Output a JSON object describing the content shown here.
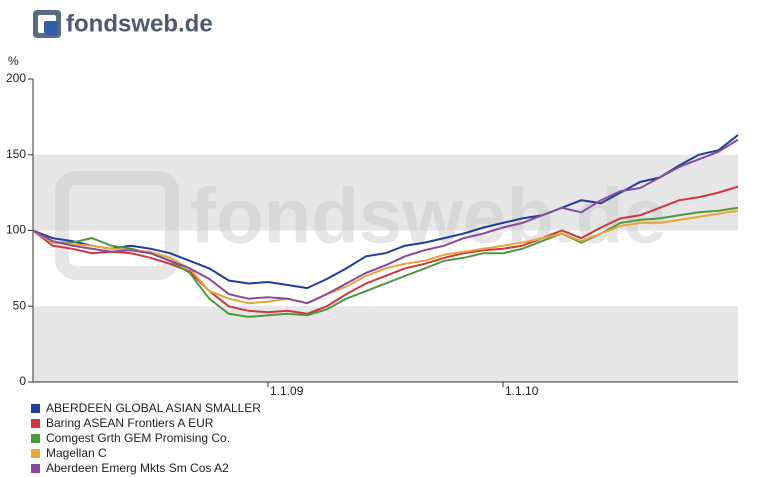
{
  "chart_data": {
    "type": "line",
    "logo": "fondsweb.de",
    "watermark": "fondsweb.de",
    "y_label": "%",
    "x": [
      2008,
      2008.083,
      2008.167,
      2008.25,
      2008.333,
      2008.417,
      2008.5,
      2008.583,
      2008.667,
      2008.75,
      2008.833,
      2008.917,
      2009,
      2009.083,
      2009.167,
      2009.25,
      2009.333,
      2009.417,
      2009.5,
      2009.583,
      2009.667,
      2009.75,
      2009.833,
      2009.917,
      2010,
      2010.083,
      2010.167,
      2010.25,
      2010.333,
      2010.417,
      2010.5,
      2010.583,
      2010.667,
      2010.75,
      2010.833,
      2010.917,
      2011
    ],
    "xlim": [
      2008,
      2011
    ],
    "xticks": [
      {
        "value": 2009,
        "label": "1.1.09"
      },
      {
        "value": 2010,
        "label": "1.1.10"
      }
    ],
    "ylim": [
      0,
      200
    ],
    "yticks": [
      0,
      50,
      100,
      150,
      200
    ],
    "grid": true,
    "legend": "bottom-left",
    "series": [
      {
        "name": "ABERDEEN GLOBAL ASIAN SMALLER",
        "color": "#1f3f9f",
        "values": [
          100,
          95,
          93,
          90,
          88,
          90,
          88,
          85,
          80,
          75,
          67,
          65,
          66,
          64,
          62,
          68,
          75,
          83,
          85,
          90,
          92,
          95,
          98,
          102,
          105,
          108,
          110,
          115,
          120,
          118,
          125,
          132,
          135,
          143,
          150,
          153,
          163
        ]
      },
      {
        "name": "Baring ASEAN Frontiers A EUR",
        "color": "#d0373a",
        "values": [
          100,
          90,
          88,
          85,
          86,
          85,
          82,
          78,
          73,
          60,
          50,
          47,
          46,
          47,
          45,
          50,
          58,
          65,
          70,
          75,
          78,
          82,
          85,
          87,
          88,
          90,
          95,
          100,
          95,
          102,
          108,
          110,
          115,
          120,
          122,
          125,
          129
        ]
      },
      {
        "name": "Comgest Grth GEM Promising Co.",
        "color": "#4c9a3b",
        "values": [
          100,
          92,
          92,
          95,
          90,
          88,
          85,
          80,
          72,
          55,
          45,
          43,
          44,
          45,
          44,
          48,
          55,
          60,
          65,
          70,
          75,
          80,
          82,
          85,
          85,
          88,
          93,
          98,
          92,
          98,
          105,
          107,
          108,
          110,
          112,
          113,
          115
        ]
      },
      {
        "name": "Magellan C",
        "color": "#e8a53a",
        "values": [
          100,
          92,
          91,
          90,
          88,
          87,
          86,
          82,
          75,
          60,
          55,
          52,
          53,
          55,
          52,
          58,
          63,
          70,
          75,
          78,
          80,
          84,
          86,
          88,
          90,
          92,
          95,
          98,
          93,
          98,
          103,
          105,
          105,
          107,
          109,
          111,
          113
        ]
      },
      {
        "name": "Aberdeen Emerg Mkts Sm Cos A2",
        "color": "#8a4a9e",
        "values": [
          100,
          93,
          90,
          88,
          86,
          87,
          85,
          80,
          75,
          68,
          58,
          55,
          56,
          55,
          52,
          58,
          65,
          72,
          77,
          83,
          87,
          90,
          95,
          98,
          102,
          105,
          110,
          115,
          112,
          120,
          126,
          128,
          135,
          142,
          147,
          152,
          160
        ]
      }
    ]
  }
}
